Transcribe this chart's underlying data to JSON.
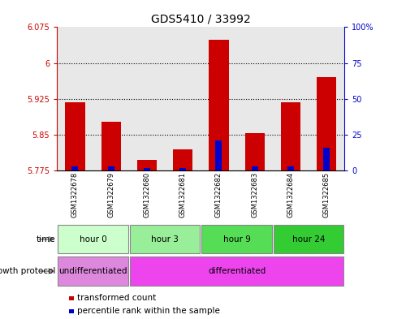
{
  "title": "GDS5410 / 33992",
  "samples": [
    "GSM1322678",
    "GSM1322679",
    "GSM1322680",
    "GSM1322681",
    "GSM1322682",
    "GSM1322683",
    "GSM1322684",
    "GSM1322685"
  ],
  "transformed_count": [
    5.918,
    5.878,
    5.797,
    5.82,
    6.048,
    5.853,
    5.918,
    5.97
  ],
  "percentile_rank": [
    3.0,
    3.0,
    2.0,
    2.0,
    21.0,
    3.0,
    3.0,
    16.0
  ],
  "bar_bottom": 5.775,
  "ylim_left": [
    5.775,
    6.075
  ],
  "ylim_right": [
    0,
    100
  ],
  "yticks_left": [
    5.775,
    5.85,
    5.925,
    6.0,
    6.075
  ],
  "ytick_labels_left": [
    "5.775",
    "5.85",
    "5.925",
    "6",
    "6.075"
  ],
  "yticks_right": [
    0,
    25,
    50,
    75,
    100
  ],
  "ytick_labels_right": [
    "0",
    "25",
    "50",
    "75",
    "100%"
  ],
  "hlines": [
    5.85,
    5.925,
    6.0
  ],
  "bar_color_red": "#cc0000",
  "bar_color_blue": "#0000cc",
  "left_axis_color": "#cc0000",
  "right_axis_color": "#0000cc",
  "time_groups": [
    {
      "label": "hour 0",
      "start": 0,
      "end": 2,
      "color": "#ccffcc"
    },
    {
      "label": "hour 3",
      "start": 2,
      "end": 4,
      "color": "#99ee99"
    },
    {
      "label": "hour 9",
      "start": 4,
      "end": 6,
      "color": "#55dd55"
    },
    {
      "label": "hour 24",
      "start": 6,
      "end": 8,
      "color": "#33cc33"
    }
  ],
  "protocol_groups": [
    {
      "label": "undifferentiated",
      "start": 0,
      "end": 2,
      "color": "#dd88dd"
    },
    {
      "label": "differentiated",
      "start": 2,
      "end": 8,
      "color": "#ee44ee"
    }
  ],
  "legend_items": [
    {
      "label": "transformed count",
      "color": "#cc0000"
    },
    {
      "label": "percentile rank within the sample",
      "color": "#0000cc"
    }
  ],
  "bar_width": 0.55,
  "blue_bar_width": 0.18,
  "bg_color": "#e8e8e8",
  "white": "#ffffff"
}
